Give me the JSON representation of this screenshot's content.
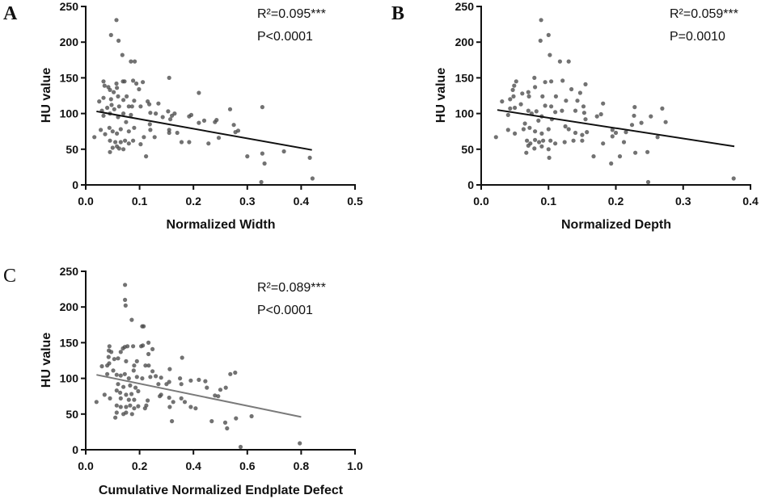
{
  "chart_data": [
    {
      "type": "scatter",
      "panel_letter": "A",
      "letter_bold": true,
      "xlabel": "Normalized Width",
      "ylabel": "HU value",
      "xlim": [
        0,
        0.5
      ],
      "ylim": [
        0,
        250
      ],
      "xticks": [
        "0.0",
        "0.1",
        "0.2",
        "0.3",
        "0.4",
        "0.5"
      ],
      "yticks": [
        "0",
        "50",
        "100",
        "150",
        "200",
        "250"
      ],
      "annotation": [
        "R²=0.095***",
        "P<0.0001"
      ],
      "regression": {
        "x": [
          0.02,
          0.42
        ],
        "y": [
          103,
          49
        ],
        "color": "#111111"
      },
      "points": [
        [
          0.057,
          231
        ],
        [
          0.047,
          210
        ],
        [
          0.061,
          202
        ],
        [
          0.068,
          182
        ],
        [
          0.084,
          173
        ],
        [
          0.091,
          173
        ],
        [
          0.155,
          150
        ],
        [
          0.033,
          145
        ],
        [
          0.057,
          142
        ],
        [
          0.069,
          145
        ],
        [
          0.072,
          145
        ],
        [
          0.088,
          146
        ],
        [
          0.094,
          142
        ],
        [
          0.106,
          144
        ],
        [
          0.099,
          134
        ],
        [
          0.035,
          139
        ],
        [
          0.042,
          137
        ],
        [
          0.045,
          133
        ],
        [
          0.052,
          130
        ],
        [
          0.058,
          136
        ],
        [
          0.06,
          124
        ],
        [
          0.076,
          124
        ],
        [
          0.21,
          129
        ],
        [
          0.033,
          122
        ],
        [
          0.025,
          117
        ],
        [
          0.047,
          120
        ],
        [
          0.07,
          119
        ],
        [
          0.09,
          118
        ],
        [
          0.115,
          117
        ],
        [
          0.135,
          114
        ],
        [
          0.03,
          104
        ],
        [
          0.04,
          108
        ],
        [
          0.048,
          112
        ],
        [
          0.053,
          106
        ],
        [
          0.062,
          110
        ],
        [
          0.08,
          110
        ],
        [
          0.086,
          110
        ],
        [
          0.102,
          110
        ],
        [
          0.118,
          113
        ],
        [
          0.12,
          101
        ],
        [
          0.13,
          100
        ],
        [
          0.153,
          103
        ],
        [
          0.165,
          100
        ],
        [
          0.143,
          95
        ],
        [
          0.157,
          92
        ],
        [
          0.16,
          97
        ],
        [
          0.192,
          96
        ],
        [
          0.196,
          98
        ],
        [
          0.21,
          87
        ],
        [
          0.22,
          90
        ],
        [
          0.24,
          88
        ],
        [
          0.243,
          91
        ],
        [
          0.268,
          106
        ],
        [
          0.328,
          109
        ],
        [
          0.033,
          97
        ],
        [
          0.045,
          100
        ],
        [
          0.06,
          95
        ],
        [
          0.07,
          100
        ],
        [
          0.075,
          88
        ],
        [
          0.084,
          98
        ],
        [
          0.09,
          80
        ],
        [
          0.044,
          80
        ],
        [
          0.05,
          75
        ],
        [
          0.058,
          72
        ],
        [
          0.065,
          78
        ],
        [
          0.08,
          75
        ],
        [
          0.028,
          77
        ],
        [
          0.036,
          71
        ],
        [
          0.016,
          67
        ],
        [
          0.108,
          67
        ],
        [
          0.12,
          77
        ],
        [
          0.128,
          67
        ],
        [
          0.119,
          85
        ],
        [
          0.155,
          73
        ],
        [
          0.155,
          77
        ],
        [
          0.17,
          73
        ],
        [
          0.178,
          60
        ],
        [
          0.192,
          60
        ],
        [
          0.228,
          58
        ],
        [
          0.247,
          66
        ],
        [
          0.275,
          84
        ],
        [
          0.278,
          74
        ],
        [
          0.283,
          76
        ],
        [
          0.045,
          62
        ],
        [
          0.055,
          60
        ],
        [
          0.065,
          60
        ],
        [
          0.073,
          62
        ],
        [
          0.08,
          58
        ],
        [
          0.088,
          62
        ],
        [
          0.05,
          52
        ],
        [
          0.058,
          54
        ],
        [
          0.062,
          51
        ],
        [
          0.07,
          50
        ],
        [
          0.045,
          46
        ],
        [
          0.102,
          57
        ],
        [
          0.112,
          40
        ],
        [
          0.3,
          40
        ],
        [
          0.328,
          44
        ],
        [
          0.332,
          30
        ],
        [
          0.368,
          47
        ],
        [
          0.416,
          38
        ],
        [
          0.421,
          9
        ],
        [
          0.326,
          4
        ]
      ]
    },
    {
      "type": "scatter",
      "panel_letter": "B",
      "letter_bold": true,
      "xlabel": "Normalized Depth",
      "ylabel": "HU value",
      "xlim": [
        0,
        0.4
      ],
      "ylim": [
        0,
        250
      ],
      "xticks": [
        "0.0",
        "0.1",
        "0.2",
        "0.3",
        "0.4"
      ],
      "yticks": [
        "0",
        "50",
        "100",
        "150",
        "200",
        "250"
      ],
      "annotation": [
        "R²=0.059***",
        "P=0.0010"
      ],
      "regression": {
        "x": [
          0.024,
          0.376
        ],
        "y": [
          105,
          54
        ],
        "color": "#111111"
      },
      "points": [
        [
          0.089,
          231
        ],
        [
          0.1,
          210
        ],
        [
          0.088,
          202
        ],
        [
          0.102,
          182
        ],
        [
          0.117,
          173
        ],
        [
          0.13,
          173
        ],
        [
          0.079,
          150
        ],
        [
          0.052,
          145
        ],
        [
          0.095,
          144
        ],
        [
          0.104,
          145
        ],
        [
          0.121,
          146
        ],
        [
          0.155,
          141
        ],
        [
          0.049,
          139
        ],
        [
          0.047,
          133
        ],
        [
          0.08,
          137
        ],
        [
          0.07,
          130
        ],
        [
          0.134,
          134
        ],
        [
          0.061,
          128
        ],
        [
          0.147,
          129
        ],
        [
          0.048,
          124
        ],
        [
          0.071,
          124
        ],
        [
          0.091,
          124
        ],
        [
          0.111,
          124
        ],
        [
          0.031,
          117
        ],
        [
          0.043,
          120
        ],
        [
          0.059,
          113
        ],
        [
          0.104,
          110
        ],
        [
          0.126,
          118
        ],
        [
          0.143,
          118
        ],
        [
          0.181,
          114
        ],
        [
          0.152,
          110
        ],
        [
          0.228,
          109
        ],
        [
          0.269,
          107
        ],
        [
          0.043,
          107
        ],
        [
          0.05,
          108
        ],
        [
          0.07,
          104
        ],
        [
          0.082,
          103
        ],
        [
          0.095,
          111
        ],
        [
          0.11,
          102
        ],
        [
          0.12,
          104
        ],
        [
          0.14,
          104
        ],
        [
          0.153,
          101
        ],
        [
          0.172,
          96
        ],
        [
          0.178,
          99
        ],
        [
          0.227,
          97
        ],
        [
          0.252,
          96
        ],
        [
          0.274,
          88
        ],
        [
          0.224,
          84
        ],
        [
          0.238,
          87
        ],
        [
          0.065,
          86
        ],
        [
          0.075,
          100
        ],
        [
          0.085,
          90
        ],
        [
          0.09,
          96
        ],
        [
          0.105,
          92
        ],
        [
          0.125,
          82
        ],
        [
          0.155,
          92
        ],
        [
          0.04,
          98
        ],
        [
          0.063,
          78
        ],
        [
          0.072,
          80
        ],
        [
          0.08,
          75
        ],
        [
          0.09,
          72
        ],
        [
          0.1,
          78
        ],
        [
          0.13,
          78
        ],
        [
          0.14,
          73
        ],
        [
          0.157,
          74
        ],
        [
          0.195,
          77
        ],
        [
          0.2,
          73
        ],
        [
          0.215,
          74
        ],
        [
          0.15,
          70
        ],
        [
          0.04,
          77
        ],
        [
          0.05,
          72
        ],
        [
          0.022,
          67
        ],
        [
          0.068,
          62
        ],
        [
          0.073,
          58
        ],
        [
          0.08,
          63
        ],
        [
          0.086,
          60
        ],
        [
          0.092,
          62
        ],
        [
          0.103,
          62
        ],
        [
          0.11,
          58
        ],
        [
          0.124,
          60
        ],
        [
          0.137,
          62
        ],
        [
          0.15,
          62
        ],
        [
          0.181,
          58
        ],
        [
          0.195,
          68
        ],
        [
          0.212,
          60
        ],
        [
          0.262,
          67
        ],
        [
          0.07,
          55
        ],
        [
          0.079,
          51
        ],
        [
          0.09,
          54
        ],
        [
          0.1,
          50
        ],
        [
          0.067,
          45
        ],
        [
          0.101,
          38
        ],
        [
          0.167,
          40
        ],
        [
          0.206,
          40
        ],
        [
          0.229,
          45
        ],
        [
          0.247,
          46
        ],
        [
          0.193,
          30
        ],
        [
          0.248,
          4
        ],
        [
          0.375,
          9
        ]
      ]
    },
    {
      "type": "scatter",
      "panel_letter": "C",
      "letter_bold": false,
      "xlabel": "Cumulative Normalized Endplate Defect",
      "ylabel": "HU value",
      "xlim": [
        0,
        1.0
      ],
      "ylim": [
        0,
        250
      ],
      "xticks": [
        "0.0",
        "0.2",
        "0.4",
        "0.6",
        "0.8",
        "1.0"
      ],
      "yticks": [
        "0",
        "50",
        "100",
        "150",
        "200",
        "250"
      ],
      "annotation": [
        "R²=0.089***",
        "P<0.0001"
      ],
      "regression": {
        "x": [
          0.04,
          0.8
        ],
        "y": [
          105,
          46
        ],
        "color": "#7a7a7a"
      },
      "points": [
        [
          0.146,
          231
        ],
        [
          0.146,
          210
        ],
        [
          0.148,
          202
        ],
        [
          0.171,
          182
        ],
        [
          0.21,
          173
        ],
        [
          0.215,
          173
        ],
        [
          0.233,
          150
        ],
        [
          0.088,
          145
        ],
        [
          0.145,
          144
        ],
        [
          0.155,
          145
        ],
        [
          0.176,
          145
        ],
        [
          0.206,
          145
        ],
        [
          0.212,
          146
        ],
        [
          0.248,
          141
        ],
        [
          0.138,
          142
        ],
        [
          0.086,
          139
        ],
        [
          0.095,
          137
        ],
        [
          0.13,
          137
        ],
        [
          0.358,
          129
        ],
        [
          0.233,
          134
        ],
        [
          0.085,
          130
        ],
        [
          0.087,
          121
        ],
        [
          0.08,
          118
        ],
        [
          0.106,
          127
        ],
        [
          0.12,
          128
        ],
        [
          0.15,
          124
        ],
        [
          0.19,
          124
        ],
        [
          0.06,
          117
        ],
        [
          0.18,
          118
        ],
        [
          0.222,
          118
        ],
        [
          0.234,
          118
        ],
        [
          0.312,
          113
        ],
        [
          0.248,
          110
        ],
        [
          0.178,
          111
        ],
        [
          0.555,
          108
        ],
        [
          0.537,
          106
        ],
        [
          0.102,
          111
        ],
        [
          0.08,
          106
        ],
        [
          0.115,
          105
        ],
        [
          0.13,
          104
        ],
        [
          0.145,
          106
        ],
        [
          0.16,
          100
        ],
        [
          0.19,
          102
        ],
        [
          0.21,
          100
        ],
        [
          0.24,
          102
        ],
        [
          0.26,
          103
        ],
        [
          0.28,
          101
        ],
        [
          0.35,
          100
        ],
        [
          0.39,
          97
        ],
        [
          0.42,
          98
        ],
        [
          0.444,
          96
        ],
        [
          0.31,
          95
        ],
        [
          0.3,
          92
        ],
        [
          0.27,
          92
        ],
        [
          0.355,
          92
        ],
        [
          0.45,
          87
        ],
        [
          0.52,
          87
        ],
        [
          0.5,
          84
        ],
        [
          0.12,
          92
        ],
        [
          0.14,
          88
        ],
        [
          0.165,
          90
        ],
        [
          0.185,
          87
        ],
        [
          0.115,
          83
        ],
        [
          0.128,
          80
        ],
        [
          0.15,
          77
        ],
        [
          0.17,
          78
        ],
        [
          0.195,
          82
        ],
        [
          0.13,
          72
        ],
        [
          0.16,
          70
        ],
        [
          0.18,
          70
        ],
        [
          0.07,
          77
        ],
        [
          0.09,
          72
        ],
        [
          0.04,
          67
        ],
        [
          0.275,
          75
        ],
        [
          0.28,
          77
        ],
        [
          0.31,
          73
        ],
        [
          0.325,
          67
        ],
        [
          0.355,
          72
        ],
        [
          0.368,
          67
        ],
        [
          0.48,
          76
        ],
        [
          0.492,
          75
        ],
        [
          0.115,
          62
        ],
        [
          0.13,
          60
        ],
        [
          0.15,
          60
        ],
        [
          0.165,
          62
        ],
        [
          0.18,
          58
        ],
        [
          0.195,
          61
        ],
        [
          0.225,
          62
        ],
        [
          0.23,
          69
        ],
        [
          0.22,
          58
        ],
        [
          0.312,
          60
        ],
        [
          0.39,
          60
        ],
        [
          0.408,
          58
        ],
        [
          0.115,
          52
        ],
        [
          0.14,
          50
        ],
        [
          0.15,
          52
        ],
        [
          0.172,
          50
        ],
        [
          0.11,
          45
        ],
        [
          0.32,
          40
        ],
        [
          0.468,
          40
        ],
        [
          0.518,
          38
        ],
        [
          0.525,
          30
        ],
        [
          0.558,
          44
        ],
        [
          0.616,
          47
        ],
        [
          0.575,
          4
        ],
        [
          0.795,
          9
        ]
      ]
    }
  ]
}
